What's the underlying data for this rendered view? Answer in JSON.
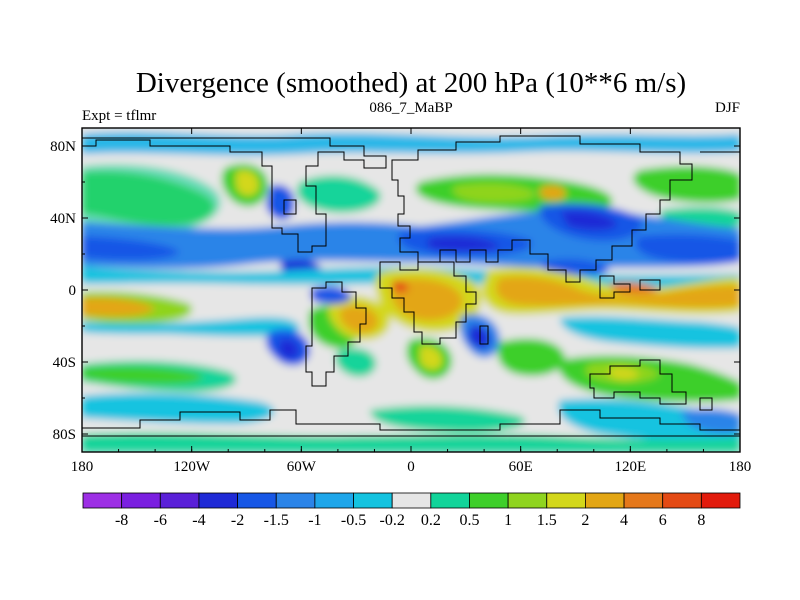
{
  "chart_data": {
    "type": "heatmap",
    "title": "Divergence (smoothed) at 200 hPa (10**6 m/s)",
    "subtitle_left": "Expt = tflmr",
    "subtitle_center": "086_7_MaBP",
    "subtitle_right": "DJF",
    "x_range": [
      -180,
      180
    ],
    "y_range": [
      -90,
      90
    ],
    "x_ticks": [
      {
        "value": -180,
        "label": "180"
      },
      {
        "value": -120,
        "label": "120W"
      },
      {
        "value": -60,
        "label": "60W"
      },
      {
        "value": 0,
        "label": "0"
      },
      {
        "value": 60,
        "label": "60E"
      },
      {
        "value": 120,
        "label": "120E"
      },
      {
        "value": 180,
        "label": "180"
      }
    ],
    "y_ticks": [
      {
        "value": 80,
        "label": "80N"
      },
      {
        "value": 40,
        "label": "40N"
      },
      {
        "value": 0,
        "label": "0"
      },
      {
        "value": -40,
        "label": "40S"
      },
      {
        "value": -80,
        "label": "80S"
      }
    ],
    "colorbar_labels": [
      "-8",
      "-6",
      "-4",
      "-2",
      "-1.5",
      "-1",
      "-0.5",
      "-0.2",
      "0.2",
      "0.5",
      "1",
      "1.5",
      "2",
      "4",
      "6",
      "8"
    ],
    "colorbar_colors": [
      "#9d2fe5",
      "#7a1fe0",
      "#5a20d8",
      "#1f2ad6",
      "#1757e6",
      "#2b84e8",
      "#1ea6ea",
      "#14c3e0",
      "#e6e6e6",
      "#12d49a",
      "#3ecf2a",
      "#8fd41f",
      "#d3d71b",
      "#e3a614",
      "#e5781a",
      "#e44a14",
      "#e21b0c"
    ],
    "field_sample": [
      {
        "lon": -140,
        "lat": 40,
        "value": 1.2
      },
      {
        "lon": -160,
        "lat": 15,
        "value": -1.5
      },
      {
        "lon": -160,
        "lat": -10,
        "value": 4
      },
      {
        "lon": -60,
        "lat": -40,
        "value": -3
      },
      {
        "lon": -35,
        "lat": -20,
        "value": 3
      },
      {
        "lon": 15,
        "lat": 20,
        "value": -3
      },
      {
        "lon": 15,
        "lat": -10,
        "value": 4
      },
      {
        "lon": 40,
        "lat": -5,
        "value": 5
      },
      {
        "lon": 80,
        "lat": 35,
        "value": -2.5
      },
      {
        "lon": 140,
        "lat": 0,
        "value": 5
      },
      {
        "lon": 160,
        "lat": 25,
        "value": -3
      },
      {
        "lon": 100,
        "lat": -50,
        "value": 1.5
      }
    ]
  }
}
